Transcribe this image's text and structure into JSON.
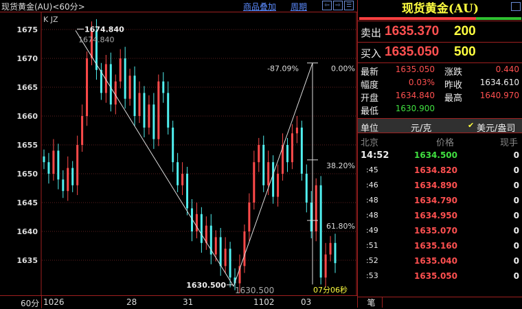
{
  "header": {
    "title": "现货黄金(AU)<60分>",
    "overlay_link": "商品叠加",
    "period_link": "周期",
    "nav_icons": [
      "arrow-left-icon",
      "arrow-right-icon",
      "layout-icon"
    ]
  },
  "chart_data": {
    "type": "candlestick",
    "indicator_label": "K JZ",
    "ylim": [
      1628,
      1678
    ],
    "y_ticks": [
      1635,
      1640,
      1645,
      1650,
      1655,
      1660,
      1665,
      1670,
      1675
    ],
    "x_ticks": [
      "1026",
      "28",
      "31",
      "1102",
      "03"
    ],
    "period_label": "60分",
    "closes": [
      1652,
      1650,
      1654,
      1649,
      1647,
      1651,
      1648,
      1655,
      1660,
      1670,
      1674.8,
      1668,
      1664,
      1669,
      1662,
      1666,
      1670,
      1663,
      1667,
      1660,
      1664,
      1658,
      1662,
      1656,
      1666,
      1664,
      1658,
      1652,
      1648,
      1650,
      1644,
      1640,
      1643,
      1638,
      1641,
      1636,
      1639,
      1634,
      1637,
      1632,
      1631,
      1634,
      1640,
      1645,
      1652,
      1655,
      1648,
      1652,
      1646,
      1650,
      1655,
      1652,
      1657,
      1658,
      1650,
      1645,
      1640,
      1648,
      1632,
      1636,
      1638,
      1634.5
    ],
    "high_label": "1674.840",
    "high_label2": "1674.840",
    "low_label": "1630.500",
    "low_label2": "1630.500",
    "fib": {
      "top": 1669.2,
      "levels": [
        {
          "label": "0.00%",
          "value": 1669.2
        },
        {
          "label": "38.20%",
          "value": 1652.4
        },
        {
          "label": "61.80%",
          "value": 1641.9
        }
      ],
      "ratio_label": "-87.09%"
    },
    "countdown": "07分06秒"
  },
  "quote": {
    "title": "现货黄金(AU)",
    "sell_label": "卖出",
    "sell_price": "1635.370",
    "sell_vol": "200",
    "buy_label": "买入",
    "buy_price": "1635.050",
    "buy_vol": "500",
    "stats": [
      {
        "label": "最新",
        "value": "1635.050",
        "label2": "涨跌",
        "value2": "0.440"
      },
      {
        "label": "幅度",
        "value": "0.03%",
        "label2": "昨收",
        "value2": "1634.610"
      },
      {
        "label": "开盘",
        "value": "1634.840",
        "label2": "最高",
        "value2": "1640.970"
      },
      {
        "label": "最低",
        "value": "1630.900"
      }
    ],
    "unit_label": "单位",
    "unit1": "元/克",
    "unit2": "美元/盎司",
    "ticks_header": {
      "time": "北京",
      "price": "价格",
      "vol": "现手"
    },
    "ticks": [
      {
        "time": "14:52",
        "price": "1634.500",
        "vol": "0",
        "color": "#40e040"
      },
      {
        "time": ":45",
        "price": "1634.820",
        "vol": "0",
        "color": "#ff5050"
      },
      {
        "time": ":46",
        "price": "1634.890",
        "vol": "0",
        "color": "#ff5050"
      },
      {
        "time": ":48",
        "price": "1634.790",
        "vol": "0",
        "color": "#ff5050"
      },
      {
        "time": ":48",
        "price": "1634.950",
        "vol": "0",
        "color": "#ff5050"
      },
      {
        "time": ":49",
        "price": "1635.070",
        "vol": "0",
        "color": "#ff5050"
      },
      {
        "time": ":51",
        "price": "1635.160",
        "vol": "0",
        "color": "#ff5050"
      },
      {
        "time": ":52",
        "price": "1635.040",
        "vol": "0",
        "color": "#ff5050"
      },
      {
        "time": ":53",
        "price": "1635.050",
        "vol": "0",
        "color": "#ff5050"
      }
    ],
    "tab": "笔"
  }
}
